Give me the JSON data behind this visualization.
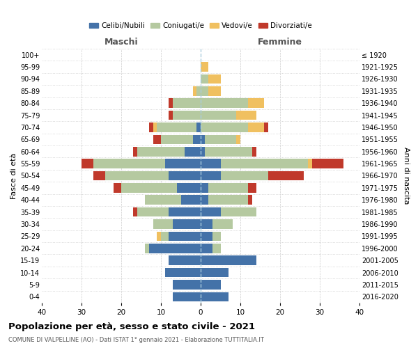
{
  "age_groups": [
    "0-4",
    "5-9",
    "10-14",
    "15-19",
    "20-24",
    "25-29",
    "30-34",
    "35-39",
    "40-44",
    "45-49",
    "50-54",
    "55-59",
    "60-64",
    "65-69",
    "70-74",
    "75-79",
    "80-84",
    "85-89",
    "90-94",
    "95-99",
    "100+"
  ],
  "birth_years": [
    "2016-2020",
    "2011-2015",
    "2006-2010",
    "2001-2005",
    "1996-2000",
    "1991-1995",
    "1986-1990",
    "1981-1985",
    "1976-1980",
    "1971-1975",
    "1966-1970",
    "1961-1965",
    "1956-1960",
    "1951-1955",
    "1946-1950",
    "1941-1945",
    "1936-1940",
    "1931-1935",
    "1926-1930",
    "1921-1925",
    "≤ 1920"
  ],
  "colors": {
    "celibi": "#4472a8",
    "coniugati": "#b5c9a0",
    "vedovi": "#f0c060",
    "divorziati": "#c0392b"
  },
  "maschi": {
    "celibi": [
      7,
      7,
      9,
      8,
      13,
      8,
      7,
      8,
      5,
      6,
      8,
      9,
      4,
      2,
      1,
      0,
      0,
      0,
      0,
      0,
      0
    ],
    "coniugati": [
      0,
      0,
      0,
      0,
      1,
      2,
      5,
      8,
      9,
      14,
      16,
      18,
      12,
      8,
      10,
      7,
      7,
      1,
      0,
      0,
      0
    ],
    "vedovi": [
      0,
      0,
      0,
      0,
      0,
      1,
      0,
      0,
      0,
      0,
      0,
      0,
      0,
      0,
      1,
      0,
      0,
      1,
      0,
      0,
      0
    ],
    "divorziati": [
      0,
      0,
      0,
      0,
      0,
      0,
      0,
      1,
      0,
      2,
      3,
      3,
      1,
      2,
      1,
      1,
      1,
      0,
      0,
      0,
      0
    ]
  },
  "femmine": {
    "celibi": [
      7,
      5,
      7,
      14,
      3,
      3,
      3,
      5,
      2,
      2,
      5,
      5,
      1,
      1,
      0,
      0,
      0,
      0,
      0,
      0,
      0
    ],
    "coniugati": [
      0,
      0,
      0,
      0,
      2,
      2,
      5,
      9,
      10,
      10,
      12,
      22,
      12,
      8,
      12,
      9,
      12,
      2,
      2,
      0,
      0
    ],
    "vedovi": [
      0,
      0,
      0,
      0,
      0,
      0,
      0,
      0,
      0,
      0,
      0,
      1,
      0,
      1,
      4,
      5,
      4,
      3,
      3,
      2,
      0
    ],
    "divorziati": [
      0,
      0,
      0,
      0,
      0,
      0,
      0,
      0,
      1,
      2,
      9,
      8,
      1,
      0,
      1,
      0,
      0,
      0,
      0,
      0,
      0
    ]
  },
  "xlim": 40,
  "title": "Popolazione per età, sesso e stato civile - 2021",
  "subtitle": "COMUNE DI VALPELLINE (AO) - Dati ISTAT 1° gennaio 2021 - Elaborazione TUTTITALIA.IT",
  "legend_labels": [
    "Celibi/Nubili",
    "Coniugati/e",
    "Vedovi/e",
    "Divorziati/e"
  ],
  "xlabel_left": "Maschi",
  "xlabel_right": "Femmine",
  "ylabel_left": "Fasce di età",
  "ylabel_right": "Anni di nascita"
}
